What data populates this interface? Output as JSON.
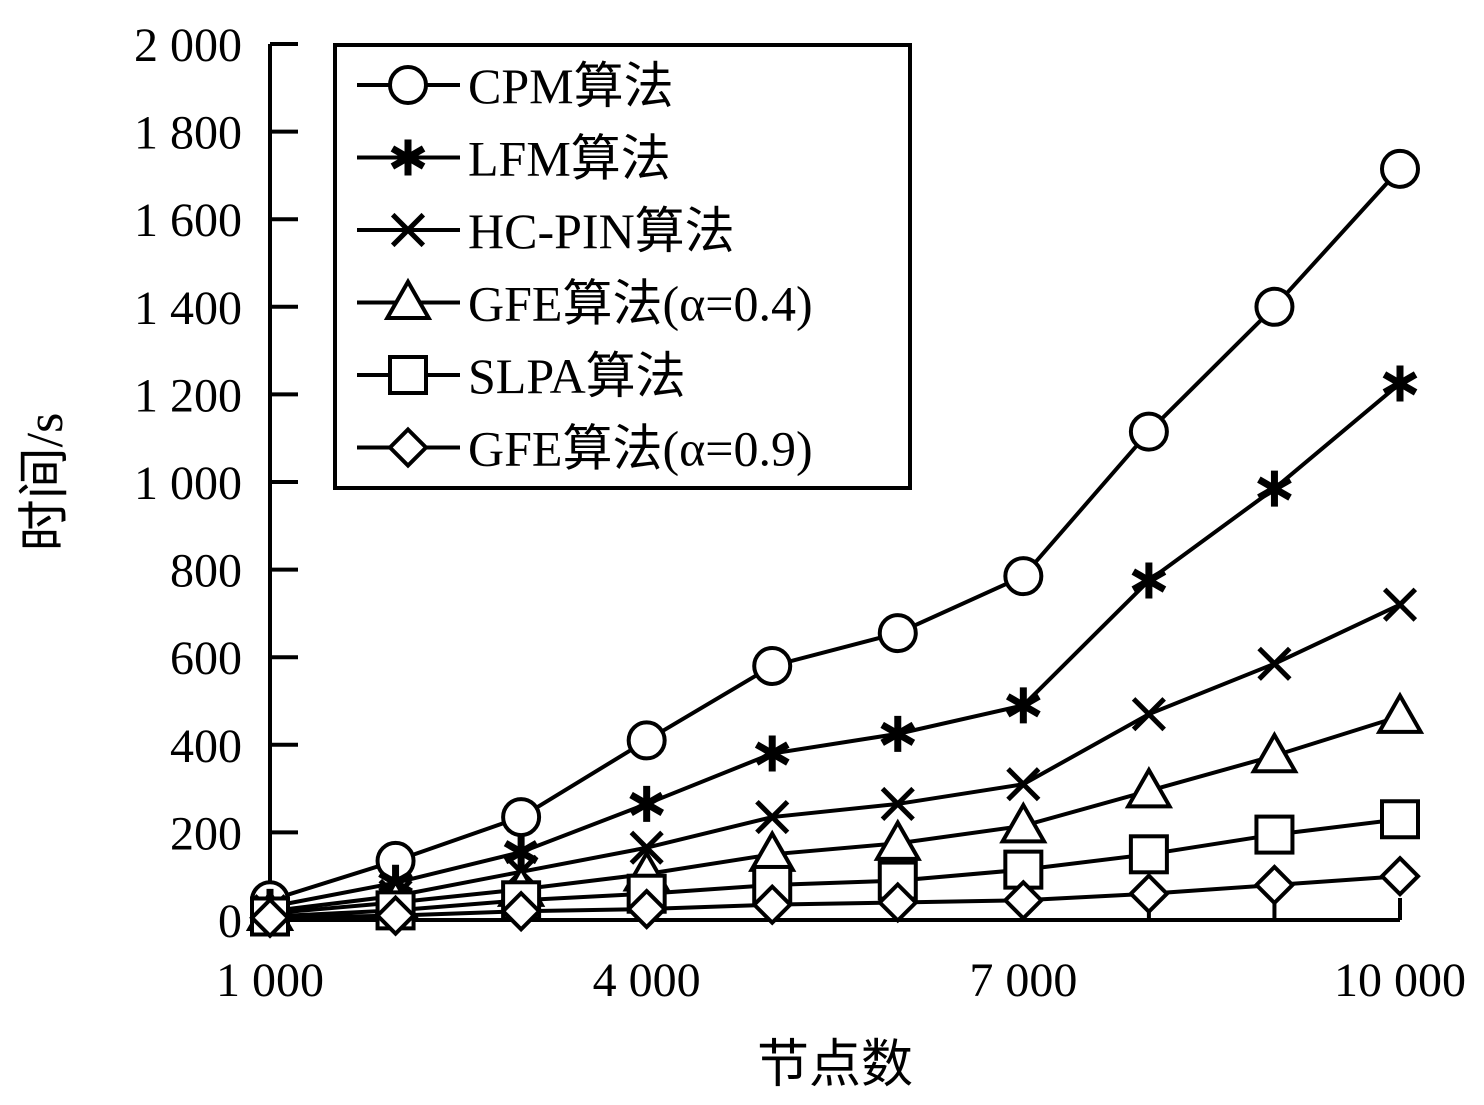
{
  "chart_data": {
    "type": "line",
    "xlabel": "节点数",
    "ylabel": "时间/s",
    "xlim": [
      1000,
      10000
    ],
    "ylim": [
      0,
      2000
    ],
    "x_ticks": [
      1000,
      4000,
      7000,
      10000
    ],
    "x_tick_labels": [
      "1 000",
      "4 000",
      "7 000",
      "10 000"
    ],
    "y_ticks": [
      0,
      200,
      400,
      600,
      800,
      1000,
      1200,
      1400,
      1600,
      1800,
      2000
    ],
    "y_tick_labels": [
      "0",
      "200",
      "400",
      "600",
      "800",
      "1 000",
      "1 200",
      "1 400",
      "1 600",
      "1 800",
      "2 000"
    ],
    "x": [
      1000,
      2000,
      3000,
      4000,
      5000,
      6000,
      7000,
      8000,
      9000,
      10000
    ],
    "legend_position": "top-left",
    "grid": false,
    "color": "#000000",
    "series": [
      {
        "name": "CPM算法",
        "marker": "circle",
        "values": [
          45,
          135,
          235,
          410,
          580,
          655,
          785,
          1115,
          1400,
          1715
        ]
      },
      {
        "name": "LFM算法",
        "marker": "asterisk",
        "values": [
          30,
          85,
          155,
          265,
          380,
          425,
          490,
          775,
          985,
          1225
        ]
      },
      {
        "name": "HC-PIN算法",
        "marker": "x",
        "values": [
          20,
          55,
          110,
          165,
          235,
          265,
          310,
          470,
          585,
          720
        ]
      },
      {
        "name": "GFE算法(α=0.4)",
        "marker": "triangle",
        "values": [
          15,
          40,
          70,
          105,
          150,
          175,
          215,
          295,
          375,
          465
        ]
      },
      {
        "name": "SLPA算法",
        "marker": "square",
        "values": [
          8,
          22,
          45,
          60,
          80,
          90,
          115,
          150,
          195,
          230
        ]
      },
      {
        "name": "GFE算法(α=0.9)",
        "marker": "diamond",
        "values": [
          5,
          10,
          20,
          25,
          35,
          40,
          45,
          60,
          80,
          100
        ]
      }
    ]
  }
}
